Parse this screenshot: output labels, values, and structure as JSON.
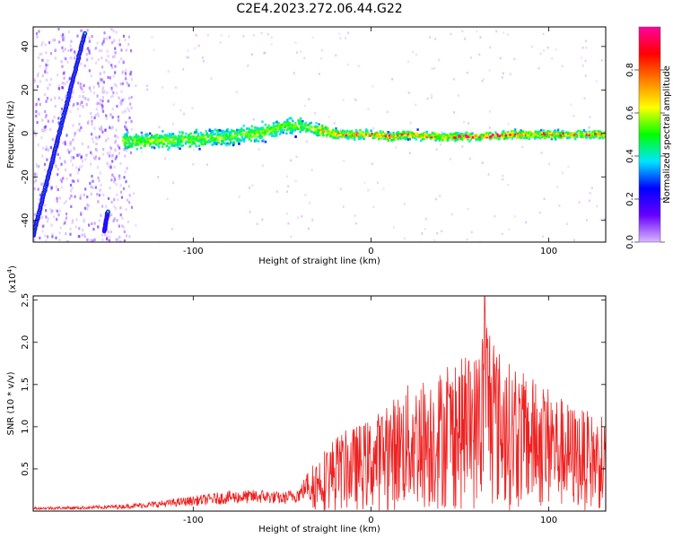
{
  "title": "C2E4.2023.272.06.44.G22",
  "chart_data": [
    {
      "type": "heatmap",
      "xlabel": "Height of straight line (km)",
      "ylabel": "Frequency (Hz)",
      "xlim": [
        -190,
        132
      ],
      "ylim": [
        -50,
        49
      ],
      "xticks": [
        -100,
        0,
        100
      ],
      "yticks": [
        -40,
        -20,
        0,
        20,
        40
      ],
      "colorbar": {
        "label": "Normalized spectral amplitude",
        "range": [
          0,
          1
        ],
        "ticks": [
          "0.0",
          "0.2",
          "0.4",
          "0.6",
          "0.8"
        ],
        "colors": [
          "#d9b8ff",
          "#6600ff",
          "#0000ff",
          "#00e5ff",
          "#00ff00",
          "#ffff00",
          "#ff8000",
          "#ff0000",
          "#ff00a0"
        ]
      },
      "tracks": [
        {
          "kind": "steep-line",
          "from": {
            "x": -190,
            "y": -47
          },
          "to": {
            "x": -161,
            "y": 46
          }
        },
        {
          "kind": "segment",
          "from": {
            "x": -150,
            "y": -45
          },
          "to": {
            "x": -148,
            "y": -36
          }
        },
        {
          "kind": "band",
          "x": [
            -140,
            -120,
            -100,
            -80,
            -60,
            -50,
            -40,
            -30,
            -20,
            -10,
            0,
            10,
            20,
            40,
            60,
            80,
            100,
            120,
            132
          ],
          "y": [
            -3,
            -3,
            -2,
            -1,
            1,
            4,
            4,
            2,
            0,
            0,
            0,
            -1,
            0,
            -1,
            -1,
            0,
            0,
            0,
            0
          ]
        }
      ]
    },
    {
      "type": "line",
      "xlabel": "Height of straight line (km)",
      "ylabel": "SNR (10 * v/v)",
      "multiplier": "(x10",
      "multiplier_exp": "4",
      "xlim": [
        -190,
        132
      ],
      "ylim": [
        0,
        2.55
      ],
      "xticks": [
        -100,
        0,
        100
      ],
      "yticks": [
        "0.5",
        "1.0",
        "1.5",
        "2.0",
        "2.5"
      ],
      "color": "#ee2222",
      "envelope": {
        "x": [
          -190,
          -160,
          -140,
          -120,
          -100,
          -80,
          -60,
          -50,
          -40,
          -35,
          -30,
          -20,
          -10,
          0,
          10,
          20,
          30,
          40,
          50,
          60,
          65,
          70,
          80,
          90,
          100,
          110,
          120,
          132
        ],
        "y": [
          0.05,
          0.06,
          0.08,
          0.12,
          0.18,
          0.24,
          0.26,
          0.22,
          0.3,
          0.5,
          0.65,
          0.9,
          1.0,
          1.1,
          1.3,
          1.5,
          1.6,
          1.7,
          1.8,
          1.9,
          2.55,
          2.0,
          1.7,
          1.6,
          1.5,
          1.3,
          1.2,
          1.1
        ]
      }
    }
  ]
}
